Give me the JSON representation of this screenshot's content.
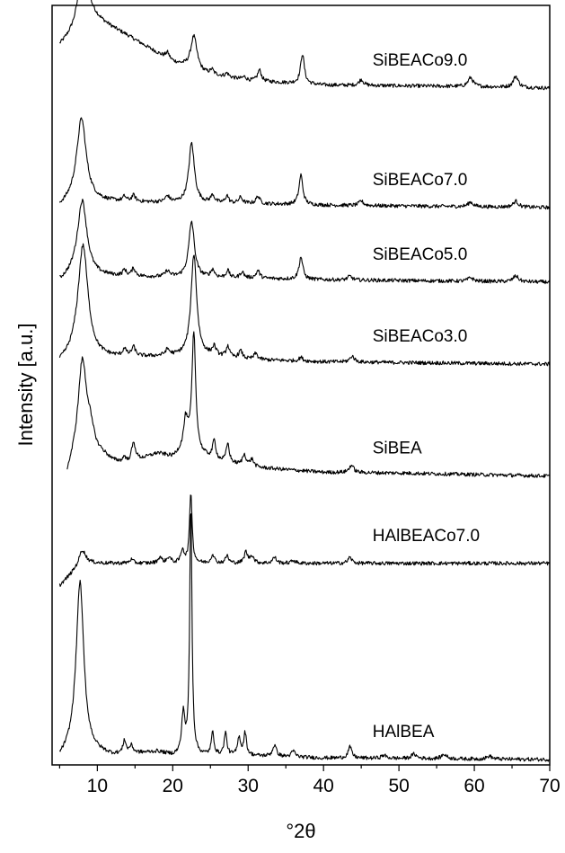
{
  "chart_data": {
    "type": "line",
    "title": "",
    "xlabel": "°2θ",
    "ylabel": "Intensity [a.u.]",
    "xlim": [
      4,
      70
    ],
    "x_ticks": [
      10,
      20,
      30,
      40,
      50,
      60,
      70
    ],
    "y_ticks": "none",
    "grid": false,
    "legend": "none (series labeled directly on the right of each trace)",
    "line_color": "#000000",
    "series": [
      {
        "name": "SiBEACo9.0",
        "baseline": 900,
        "start_x": 5,
        "start_offset": 55,
        "background": [
          [
            5,
            55
          ],
          [
            7,
            70
          ],
          [
            9,
            95
          ],
          [
            10,
            90
          ],
          [
            14,
            70
          ],
          [
            20,
            35
          ],
          [
            24,
            20
          ],
          [
            30,
            10
          ],
          [
            40,
            4
          ],
          [
            50,
            3
          ],
          [
            60,
            2
          ],
          [
            70,
            0
          ]
        ],
        "peaks": [
          [
            8.0,
            65,
            0.9
          ],
          [
            19.3,
            8,
            0.3
          ],
          [
            22.8,
            45,
            0.5
          ],
          [
            25.2,
            6,
            0.25
          ],
          [
            27.2,
            5,
            0.25
          ],
          [
            29.5,
            4,
            0.3
          ],
          [
            31.5,
            15,
            0.3
          ],
          [
            37.2,
            40,
            0.3
          ],
          [
            45.0,
            8,
            0.35
          ],
          [
            59.5,
            12,
            0.4
          ],
          [
            65.5,
            15,
            0.4
          ]
        ]
      },
      {
        "name": "SiBEACo7.0",
        "baseline": 740,
        "start_x": 5,
        "start_offset": 0,
        "background": [
          [
            5,
            0
          ],
          [
            7,
            10
          ],
          [
            10,
            8
          ],
          [
            20,
            6
          ],
          [
            30,
            5
          ],
          [
            40,
            3
          ],
          [
            70,
            0
          ]
        ],
        "peaks": [
          [
            7.9,
            110,
            0.75
          ],
          [
            13.6,
            6,
            0.25
          ],
          [
            14.8,
            8,
            0.3
          ],
          [
            19.3,
            8,
            0.35
          ],
          [
            22.5,
            80,
            0.45
          ],
          [
            25.3,
            10,
            0.3
          ],
          [
            27.2,
            10,
            0.25
          ],
          [
            29.0,
            8,
            0.3
          ],
          [
            31.3,
            10,
            0.3
          ],
          [
            37.0,
            40,
            0.3
          ],
          [
            45.0,
            6,
            0.35
          ],
          [
            59.5,
            6,
            0.4
          ],
          [
            65.5,
            8,
            0.4
          ]
        ]
      },
      {
        "name": "SiBEACo5.0",
        "baseline": 640,
        "start_x": 5,
        "start_offset": 0,
        "background": [
          [
            5,
            0
          ],
          [
            7,
            10
          ],
          [
            10,
            8
          ],
          [
            20,
            6
          ],
          [
            30,
            5
          ],
          [
            40,
            3
          ],
          [
            70,
            0
          ]
        ],
        "peaks": [
          [
            8.0,
            100,
            0.75
          ],
          [
            13.6,
            8,
            0.25
          ],
          [
            14.8,
            10,
            0.3
          ],
          [
            19.3,
            8,
            0.35
          ],
          [
            22.5,
            75,
            0.45
          ],
          [
            25.3,
            10,
            0.3
          ],
          [
            27.3,
            10,
            0.25
          ],
          [
            29.2,
            8,
            0.3
          ],
          [
            31.3,
            10,
            0.3
          ],
          [
            37.0,
            30,
            0.3
          ],
          [
            43.5,
            5,
            0.35
          ],
          [
            59.5,
            5,
            0.4
          ],
          [
            65.5,
            8,
            0.4
          ]
        ]
      },
      {
        "name": "SiBEACo3.0",
        "baseline": 530,
        "start_x": 5,
        "start_offset": 0,
        "background": [
          [
            5,
            0
          ],
          [
            7,
            10
          ],
          [
            10,
            8
          ],
          [
            20,
            10
          ],
          [
            23,
            12
          ],
          [
            30,
            6
          ],
          [
            40,
            3
          ],
          [
            70,
            0
          ]
        ],
        "peaks": [
          [
            8.1,
            150,
            0.8
          ],
          [
            13.6,
            10,
            0.25
          ],
          [
            14.8,
            12,
            0.3
          ],
          [
            19.3,
            8,
            0.35
          ],
          [
            22.8,
            135,
            0.45
          ],
          [
            25.5,
            12,
            0.3
          ],
          [
            27.3,
            15,
            0.25
          ],
          [
            29.0,
            10,
            0.3
          ],
          [
            31.0,
            8,
            0.3
          ],
          [
            37.0,
            5,
            0.3
          ],
          [
            43.8,
            8,
            0.35
          ]
        ]
      },
      {
        "name": "SiBEA",
        "baseline": 380,
        "start_x": 6,
        "start_offset": 0,
        "background": [
          [
            6,
            0
          ],
          [
            7,
            25
          ],
          [
            9,
            60
          ],
          [
            10,
            35
          ],
          [
            12,
            20
          ],
          [
            14,
            15
          ],
          [
            18,
            30
          ],
          [
            20,
            25
          ],
          [
            22,
            40
          ],
          [
            23,
            30
          ],
          [
            26,
            20
          ],
          [
            30,
            12
          ],
          [
            40,
            5
          ],
          [
            50,
            4
          ],
          [
            60,
            2
          ],
          [
            70,
            0
          ]
        ],
        "peaks": [
          [
            8.0,
            115,
            0.65
          ],
          [
            13.6,
            8,
            0.25
          ],
          [
            14.8,
            25,
            0.35
          ],
          [
            21.7,
            35,
            0.3
          ],
          [
            22.8,
            160,
            0.3
          ],
          [
            25.5,
            25,
            0.25
          ],
          [
            27.3,
            25,
            0.25
          ],
          [
            29.5,
            15,
            0.3
          ],
          [
            30.5,
            10,
            0.3
          ],
          [
            43.7,
            10,
            0.35
          ]
        ]
      },
      {
        "name": "HAlBEACo7.0",
        "baseline": 263,
        "start_x": 5,
        "start_offset": -30,
        "background": [
          [
            5,
            -30
          ],
          [
            7,
            -10
          ],
          [
            8,
            0
          ],
          [
            9,
            0
          ],
          [
            20,
            0
          ],
          [
            70,
            0
          ]
        ],
        "peaks": [
          [
            8.0,
            18,
            0.55
          ],
          [
            14.5,
            5,
            0.3
          ],
          [
            18.3,
            8,
            0.3
          ],
          [
            19.5,
            8,
            0.3
          ],
          [
            21.3,
            18,
            0.25
          ],
          [
            22.4,
            95,
            0.2
          ],
          [
            25.3,
            12,
            0.25
          ],
          [
            27.2,
            10,
            0.25
          ],
          [
            29.7,
            15,
            0.25
          ],
          [
            30.5,
            10,
            0.3
          ],
          [
            33.5,
            8,
            0.3
          ],
          [
            36.0,
            4,
            0.3
          ],
          [
            43.5,
            8,
            0.3
          ]
        ]
      },
      {
        "name": "HAlBEA",
        "baseline": 0,
        "start_x": 5,
        "start_offset": 0,
        "background": [
          [
            5,
            0
          ],
          [
            7,
            15
          ],
          [
            10,
            8
          ],
          [
            12,
            5
          ],
          [
            18,
            10
          ],
          [
            20,
            5
          ],
          [
            30,
            5
          ],
          [
            40,
            2
          ],
          [
            70,
            0
          ]
        ],
        "peaks": [
          [
            7.7,
            225,
            0.6
          ],
          [
            13.6,
            18,
            0.22
          ],
          [
            14.5,
            10,
            0.3
          ],
          [
            21.4,
            55,
            0.25
          ],
          [
            22.4,
            335,
            0.18
          ],
          [
            25.3,
            30,
            0.22
          ],
          [
            27.0,
            30,
            0.22
          ],
          [
            28.8,
            25,
            0.22
          ],
          [
            29.6,
            30,
            0.22
          ],
          [
            33.5,
            15,
            0.3
          ],
          [
            36.0,
            8,
            0.3
          ],
          [
            43.5,
            15,
            0.3
          ],
          [
            48.0,
            4,
            0.4
          ],
          [
            52.0,
            6,
            0.4
          ],
          [
            56.0,
            6,
            0.4
          ],
          [
            62.0,
            4,
            0.4
          ]
        ]
      }
    ]
  }
}
